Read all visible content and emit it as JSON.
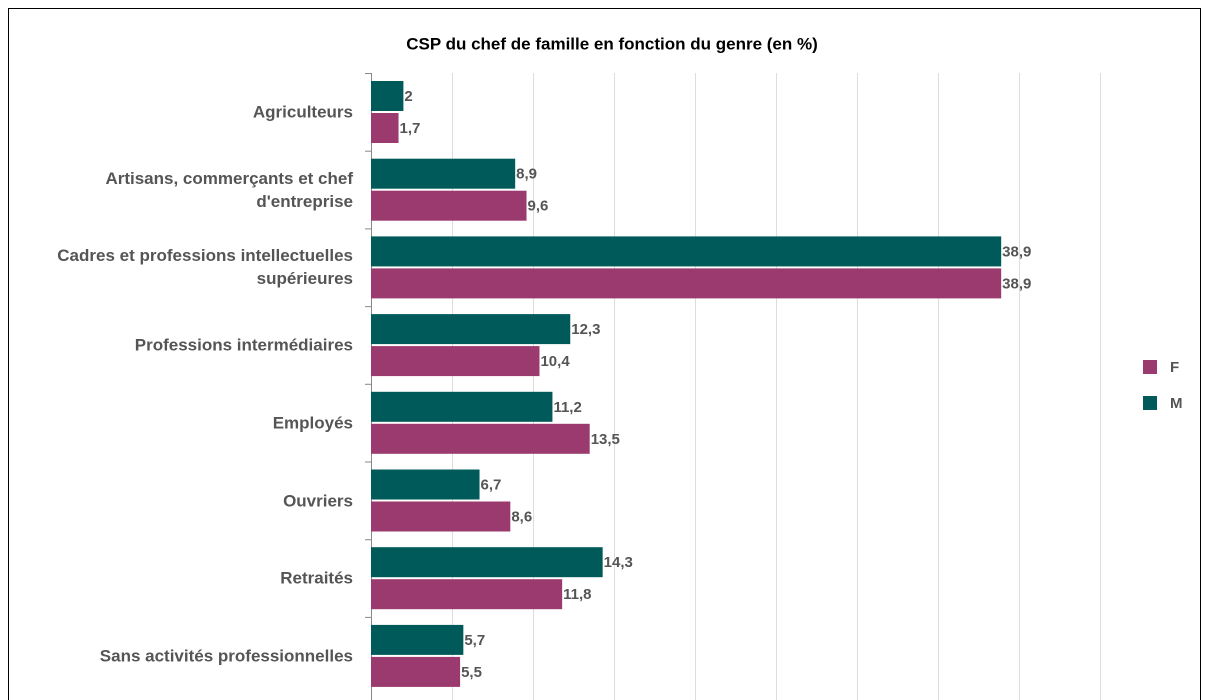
{
  "chart_data": {
    "type": "bar",
    "orientation": "horizontal",
    "title": "CSP du chef de famille en fonction du genre (en %)",
    "categories": [
      "Agriculteurs",
      "Artisans, commerçants et chef d'entreprise",
      "Cadres et professions intellectuelles supérieures",
      "Professions intermédiaires",
      "Employés",
      "Ouvriers",
      "Retraités",
      "Sans activités professionnelles"
    ],
    "series": [
      {
        "name": "M",
        "color": "#005a5a",
        "values": [
          2,
          8.9,
          38.9,
          12.3,
          11.2,
          6.7,
          14.3,
          5.7
        ],
        "value_labels": [
          "2",
          "8,9",
          "38,9",
          "12,3",
          "11,2",
          "6,7",
          "14,3",
          "5,7"
        ]
      },
      {
        "name": "F",
        "color": "#9b3a6e",
        "values": [
          1.7,
          9.6,
          38.9,
          10.4,
          13.5,
          8.6,
          11.8,
          5.5
        ],
        "value_labels": [
          "1,7",
          "9,6",
          "38,9",
          "10,4",
          "13,5",
          "8,6",
          "11,8",
          "5,5"
        ]
      }
    ],
    "xlim": [
      0,
      45
    ],
    "xticks": [
      0,
      5,
      10,
      15,
      20,
      25,
      30,
      35,
      40,
      45
    ],
    "grid": true,
    "legend": "right"
  }
}
